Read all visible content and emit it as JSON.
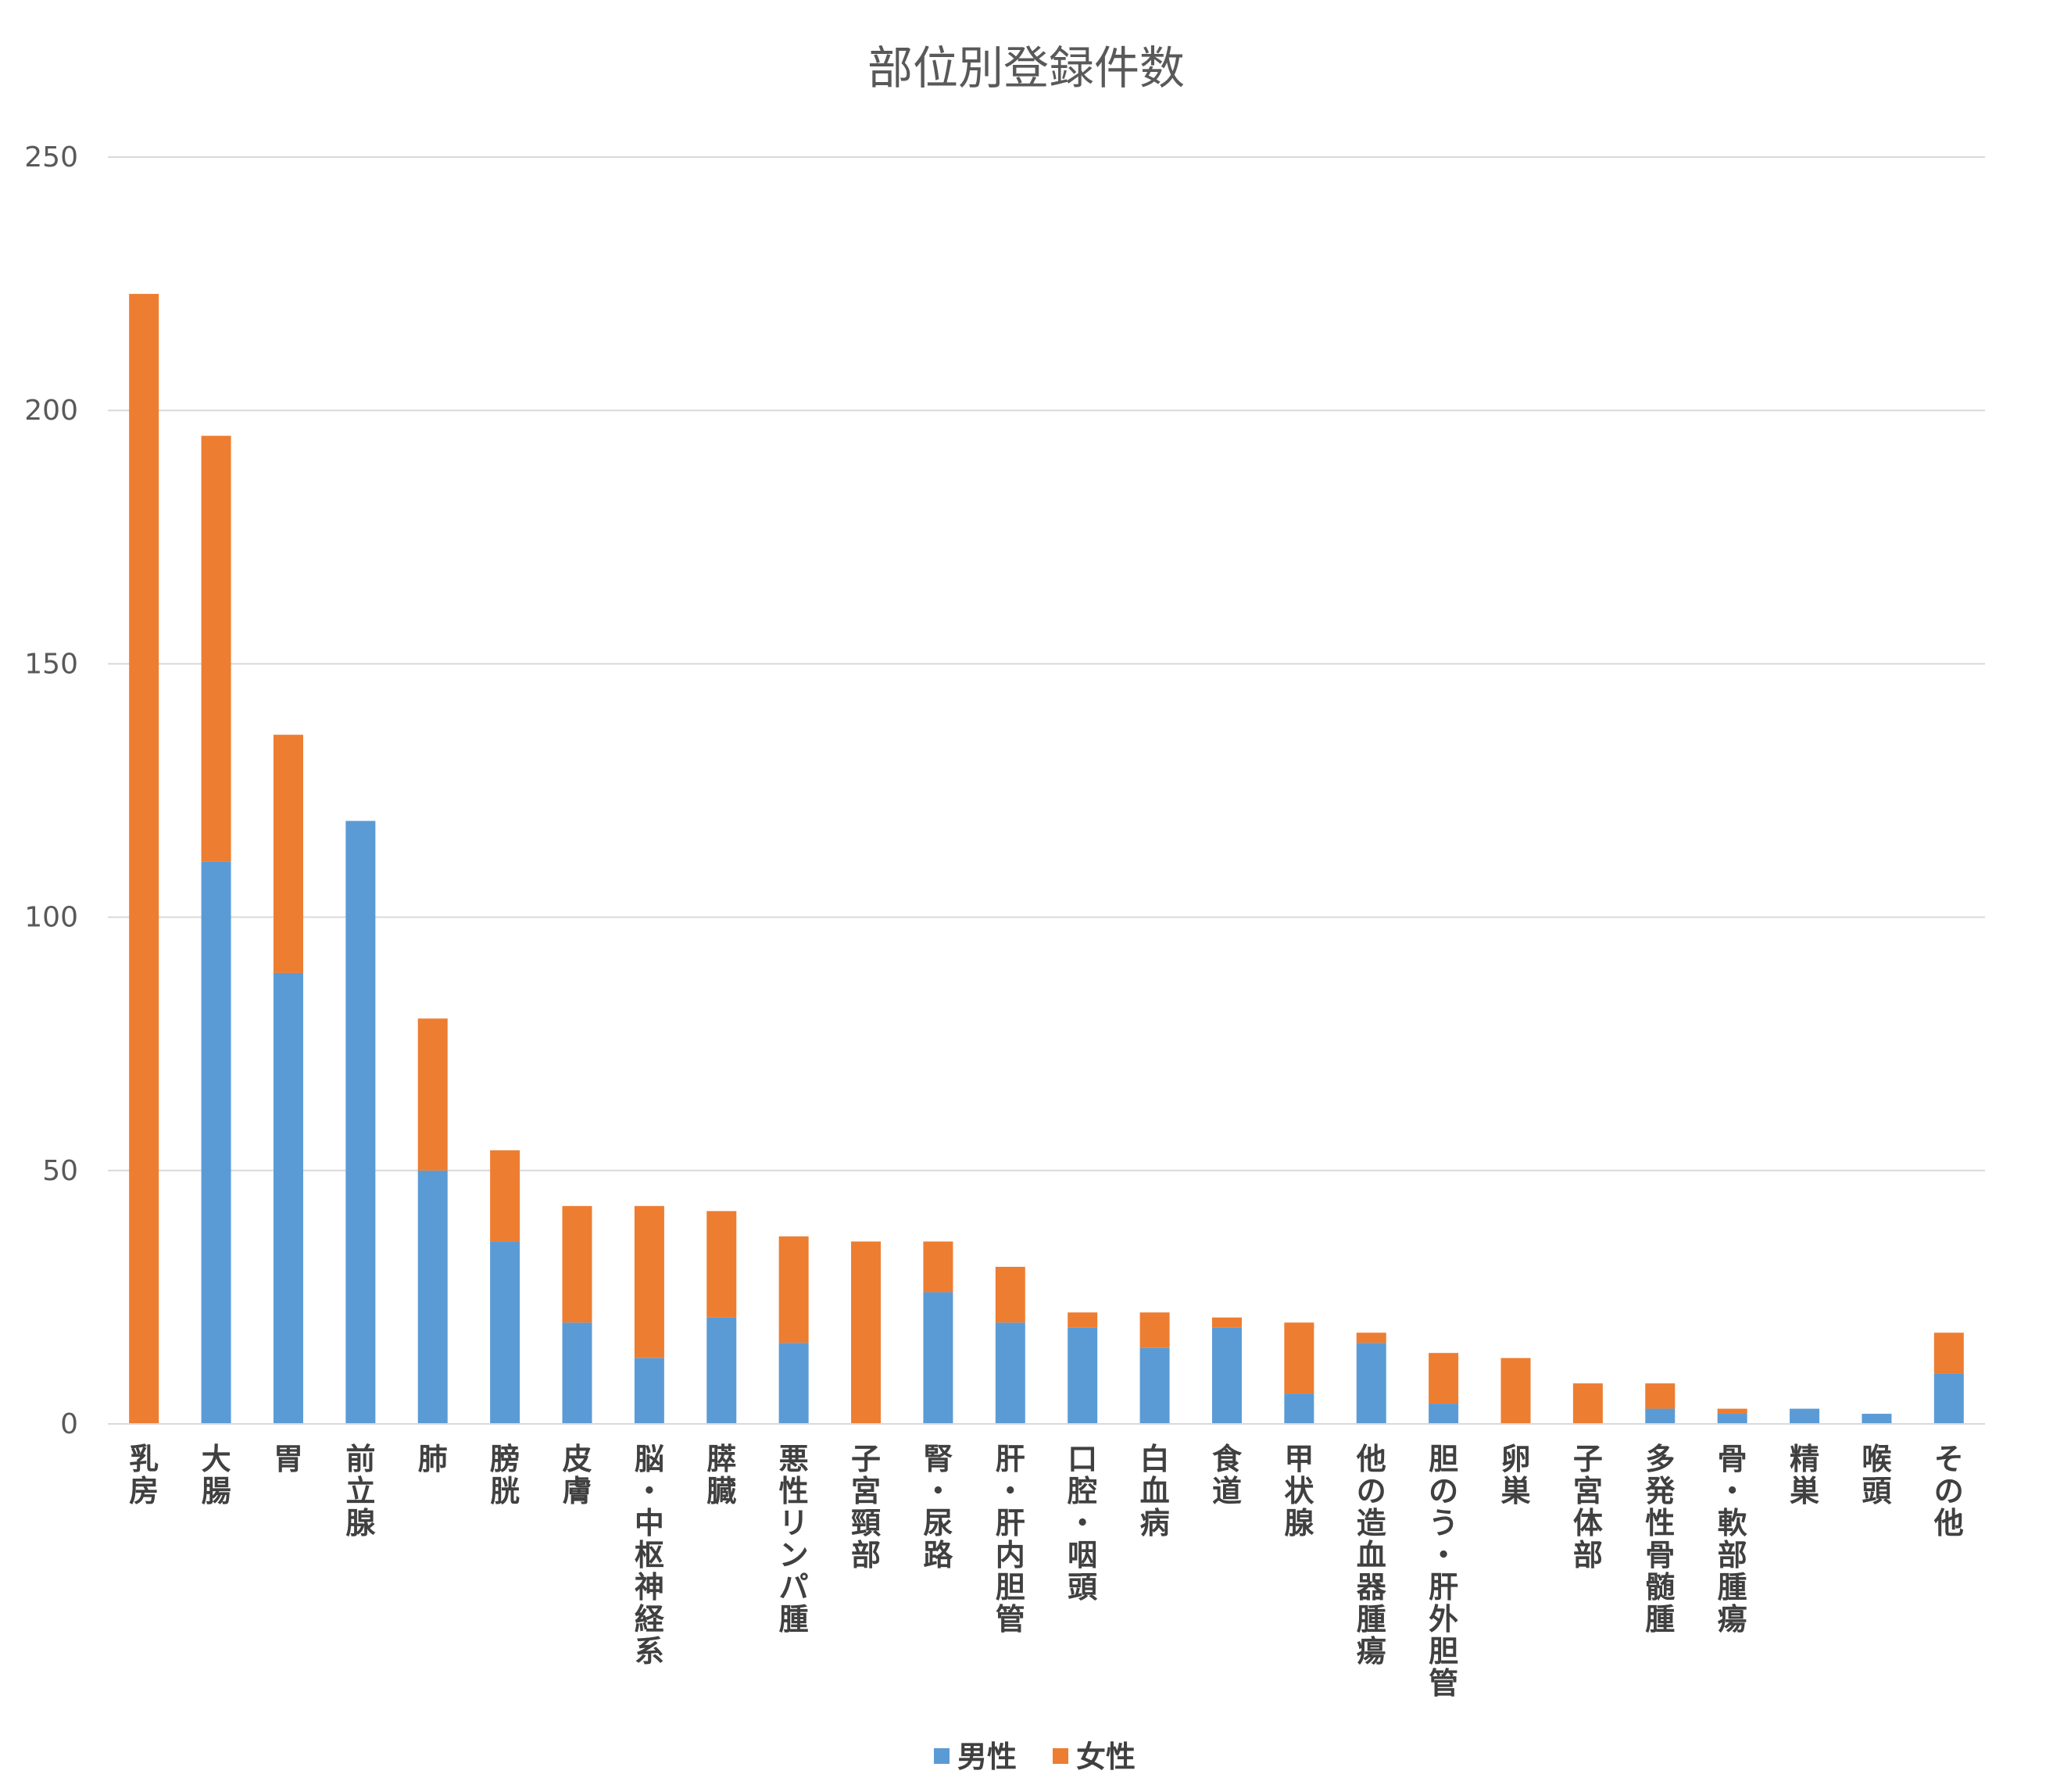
{
  "chart_data": {
    "type": "bar",
    "stacked": true,
    "title": "部位別登録件数",
    "xlabel": "",
    "ylabel": "",
    "ylim": [
      0,
      250
    ],
    "yticks": [
      0,
      50,
      100,
      150,
      200,
      250
    ],
    "grid": true,
    "legend_position": "bottom",
    "categories": [
      "乳房",
      "大腸",
      "胃",
      "前立腺",
      "肺",
      "膀胱",
      "皮膚",
      "脳・中枢神経系",
      "膵臓",
      "悪性リンパ腫",
      "子宮頸部",
      "腎・尿路",
      "肝・肝内胆管",
      "口腔・咽頭",
      "白血病",
      "食道",
      "甲状腺",
      "他の造血器腫瘍",
      "胆のう・肝外胆管",
      "卵巣",
      "子宮体部",
      "多発性骨髄腫",
      "骨・軟部腫瘍",
      "精巣",
      "喉頭",
      "その他"
    ],
    "series": [
      {
        "name": "男性",
        "color": "#5b9bd5",
        "values": [
          0,
          111,
          89,
          119,
          50,
          36,
          20,
          13,
          21,
          16,
          0,
          26,
          20,
          19,
          15,
          19,
          6,
          16,
          4,
          0,
          0,
          3,
          2,
          3,
          2,
          10
        ]
      },
      {
        "name": "女性",
        "color": "#ed7d31",
        "values": [
          223,
          84,
          47,
          0,
          30,
          18,
          23,
          30,
          21,
          21,
          36,
          10,
          11,
          3,
          7,
          2,
          14,
          2,
          10,
          13,
          8,
          5,
          1,
          0,
          0,
          8
        ]
      }
    ]
  }
}
